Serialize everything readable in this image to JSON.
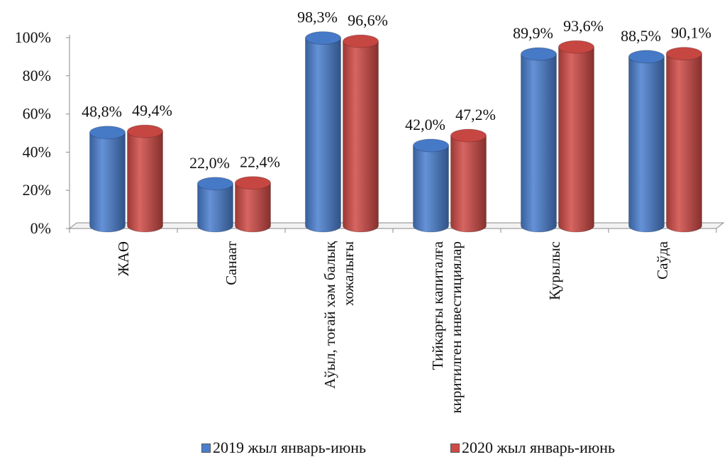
{
  "chart_data": {
    "type": "bar",
    "categories": [
      [
        "ЖАӨ"
      ],
      [
        "Санаат"
      ],
      [
        "Аўыл, тоғай хәм балық",
        "хожалығы"
      ],
      [
        "Тийкарғы капиталға",
        "киритилген инвестициялар"
      ],
      [
        "Қурылыс"
      ],
      [
        "Саўда"
      ]
    ],
    "series": [
      {
        "name": "2019 жыл январь-июнь",
        "color": "#4a7fd0",
        "values": [
          48.8,
          22.0,
          98.3,
          42.0,
          89.9,
          88.5
        ],
        "labels": [
          "48,8%",
          "22,0%",
          "98,3%",
          "42,0%",
          "89,9%",
          "88,5%"
        ]
      },
      {
        "name": "2020 жыл январь-июнь",
        "color": "#d04a45",
        "values": [
          49.4,
          22.4,
          96.6,
          47.2,
          93.6,
          90.1
        ],
        "labels": [
          "49,4%",
          "22,4%",
          "96,6%",
          "47,2%",
          "93,6%",
          "90,1%"
        ]
      }
    ],
    "ylim": [
      0,
      100
    ],
    "yticks": [
      "0%",
      "20%",
      "40%",
      "60%",
      "80%",
      "100%"
    ],
    "legend_position": "bottom",
    "grid": false
  }
}
